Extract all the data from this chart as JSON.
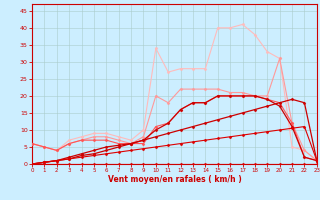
{
  "xlabel": "Vent moyen/en rafales ( km/h )",
  "background_color": "#cceeff",
  "grid_color": "#aacccc",
  "xlim": [
    0,
    23
  ],
  "ylim": [
    0,
    47
  ],
  "yticks": [
    0,
    5,
    10,
    15,
    20,
    25,
    30,
    35,
    40,
    45
  ],
  "xticks": [
    0,
    1,
    2,
    3,
    4,
    5,
    6,
    7,
    8,
    9,
    10,
    11,
    12,
    13,
    14,
    15,
    16,
    17,
    18,
    19,
    20,
    21,
    22,
    23
  ],
  "series": [
    {
      "x": [
        0,
        1,
        2,
        3,
        4,
        5,
        6,
        7,
        8,
        9,
        10,
        11,
        12,
        13,
        14,
        15,
        16,
        17,
        18,
        19,
        20,
        21,
        22,
        23
      ],
      "y": [
        0,
        0,
        0,
        0,
        0,
        0,
        0,
        0,
        0,
        0,
        0,
        0,
        0,
        0,
        0,
        0,
        0,
        0,
        0,
        0,
        0,
        0,
        0,
        0
      ],
      "color": "#dd0000",
      "linewidth": 0.8,
      "marker": "D",
      "markersize": 1.5,
      "zorder": 6
    },
    {
      "x": [
        0,
        1,
        2,
        3,
        4,
        5,
        6,
        7,
        8,
        9,
        10,
        11,
        12,
        13,
        14,
        15,
        16,
        17,
        18,
        19,
        20,
        21,
        22,
        23
      ],
      "y": [
        0,
        0.5,
        1,
        1.5,
        2,
        2.5,
        3,
        3.5,
        4,
        4.5,
        5,
        5.5,
        6,
        6.5,
        7,
        7.5,
        8,
        8.5,
        9,
        9.5,
        10,
        10.5,
        11,
        1
      ],
      "color": "#dd0000",
      "linewidth": 0.8,
      "marker": "D",
      "markersize": 1.5,
      "zorder": 6
    },
    {
      "x": [
        0,
        1,
        2,
        3,
        4,
        5,
        6,
        7,
        8,
        9,
        10,
        11,
        12,
        13,
        14,
        15,
        16,
        17,
        18,
        19,
        20,
        21,
        22,
        23
      ],
      "y": [
        0,
        0.5,
        1,
        1.5,
        2.5,
        3,
        4,
        5,
        6,
        7,
        8,
        9,
        10,
        11,
        12,
        13,
        14,
        15,
        16,
        17,
        18,
        19,
        18,
        1
      ],
      "color": "#cc0000",
      "linewidth": 0.9,
      "marker": "D",
      "markersize": 1.5,
      "zorder": 5
    },
    {
      "x": [
        0,
        1,
        2,
        3,
        4,
        5,
        6,
        7,
        8,
        9,
        10,
        11,
        12,
        13,
        14,
        15,
        16,
        17,
        18,
        19,
        20,
        21,
        22,
        23
      ],
      "y": [
        0,
        0.5,
        1,
        2,
        3,
        4,
        5,
        5.5,
        6,
        7,
        10,
        12,
        16,
        18,
        18,
        20,
        20,
        20,
        20,
        19,
        17,
        11,
        2,
        1
      ],
      "color": "#cc0000",
      "linewidth": 0.9,
      "marker": "D",
      "markersize": 1.5,
      "zorder": 5
    },
    {
      "x": [
        0,
        1,
        2,
        3,
        4,
        5,
        6,
        7,
        8,
        9,
        10,
        11,
        12,
        13,
        14,
        15,
        16,
        17,
        18,
        19,
        20,
        21,
        22,
        23
      ],
      "y": [
        6,
        5,
        4,
        6,
        7,
        7,
        7,
        6,
        6,
        6,
        11,
        12,
        16,
        18,
        18,
        20,
        20,
        20,
        20,
        19,
        18,
        12,
        2,
        1
      ],
      "color": "#ff5555",
      "linewidth": 0.8,
      "marker": "D",
      "markersize": 1.5,
      "zorder": 4
    },
    {
      "x": [
        0,
        1,
        2,
        3,
        4,
        5,
        6,
        7,
        8,
        9,
        10,
        11,
        12,
        13,
        14,
        15,
        16,
        17,
        18,
        19,
        20,
        21,
        22,
        23
      ],
      "y": [
        6,
        5,
        4,
        6,
        7,
        8,
        8,
        7,
        6,
        8,
        20,
        18,
        22,
        22,
        22,
        22,
        21,
        21,
        20,
        20,
        31,
        12,
        4,
        1
      ],
      "color": "#ff9999",
      "linewidth": 0.8,
      "marker": "D",
      "markersize": 1.5,
      "zorder": 3
    },
    {
      "x": [
        0,
        1,
        2,
        3,
        4,
        5,
        6,
        7,
        8,
        9,
        10,
        11,
        12,
        13,
        14,
        15,
        16,
        17,
        18,
        19,
        20,
        21,
        22,
        23
      ],
      "y": [
        6,
        5,
        4,
        7,
        8,
        9,
        9,
        8,
        7,
        10,
        34,
        27,
        28,
        28,
        28,
        40,
        40,
        41,
        38,
        33,
        31,
        5,
        4,
        1
      ],
      "color": "#ffbbbb",
      "linewidth": 0.8,
      "marker": "D",
      "markersize": 1.5,
      "zorder": 2
    }
  ]
}
